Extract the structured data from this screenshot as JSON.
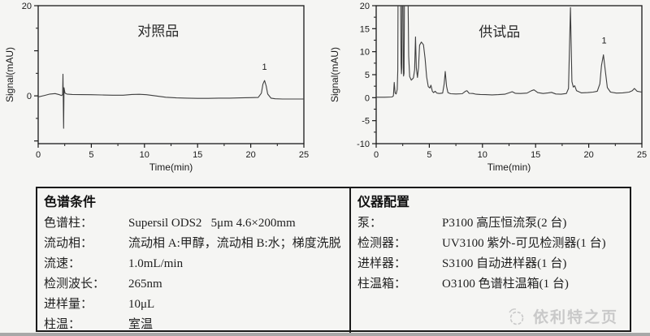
{
  "colors": {
    "background": "#f5f5f3",
    "axis": "#1a1a1a",
    "trace": "#3f3f3f",
    "text": "#1f1f1f",
    "table_border": "#1a1a1a",
    "watermark": "#c9c9c9",
    "bottom_strip": "#a8a8a8"
  },
  "chart_data": [
    {
      "type": "line",
      "sample_label": "对照品",
      "sample_label_pos": {
        "x": 11.3,
        "y": 13.3
      },
      "xlabel": "Time(min)",
      "ylabel": "Signal(mAU)",
      "xlim": [
        0,
        25
      ],
      "ylim": [
        -10.6,
        20
      ],
      "x_major_ticks": [
        0,
        5,
        10,
        15,
        20,
        25
      ],
      "x_minor_ticks": [
        2.5,
        7.5,
        12.5,
        17.5,
        22.5
      ],
      "y_major_ticks": [
        {
          "v": 20,
          "label": "20"
        },
        {
          "v": 10,
          "label": ""
        },
        {
          "v": 0,
          "label": "0"
        },
        {
          "v": -10,
          "label": ""
        }
      ],
      "y_minor_ticks": [
        15,
        5,
        -5
      ],
      "grid": false,
      "peak_labels": [
        {
          "text": "1",
          "x": 21.3,
          "y": 5.8
        }
      ],
      "series": [
        {
          "name": "对照品",
          "points": [
            [
              0,
              -0.25
            ],
            [
              0.6,
              0.1
            ],
            [
              1.1,
              0.4
            ],
            [
              1.6,
              0.5
            ],
            [
              2.0,
              0.25
            ],
            [
              2.2,
              0.05
            ],
            [
              2.3,
              0.3
            ],
            [
              2.33,
              4.8
            ],
            [
              2.36,
              -1.0
            ],
            [
              2.39,
              -7.2
            ],
            [
              2.43,
              1.8
            ],
            [
              2.52,
              0.6
            ],
            [
              2.7,
              0.4
            ],
            [
              3.2,
              0.3
            ],
            [
              4.0,
              0.28
            ],
            [
              5.0,
              0.25
            ],
            [
              6.0,
              0.2
            ],
            [
              7.0,
              0.15
            ],
            [
              8.0,
              0.15
            ],
            [
              8.8,
              0.3
            ],
            [
              9.5,
              0.35
            ],
            [
              10.2,
              0.25
            ],
            [
              11.0,
              0.0
            ],
            [
              12.0,
              -0.3
            ],
            [
              13.0,
              -0.45
            ],
            [
              14.0,
              -0.5
            ],
            [
              15.0,
              -0.55
            ],
            [
              16.0,
              -0.55
            ],
            [
              17.0,
              -0.5
            ],
            [
              18.0,
              -0.5
            ],
            [
              19.0,
              -0.45
            ],
            [
              20.0,
              -0.4
            ],
            [
              20.7,
              -0.35
            ],
            [
              21.0,
              0.6
            ],
            [
              21.15,
              2.6
            ],
            [
              21.3,
              3.4
            ],
            [
              21.45,
              2.2
            ],
            [
              21.6,
              0.4
            ],
            [
              21.9,
              -0.5
            ],
            [
              22.3,
              -0.65
            ],
            [
              23.0,
              -0.7
            ],
            [
              24.0,
              -0.7
            ],
            [
              25.0,
              -0.7
            ]
          ]
        }
      ]
    },
    {
      "type": "line",
      "sample_label": "供试品",
      "sample_label_pos": {
        "x": 11.6,
        "y": 13.3
      },
      "xlabel": "Time(min)",
      "ylabel": "Signal(mAU)",
      "xlim": [
        0,
        25
      ],
      "ylim": [
        -10,
        20
      ],
      "x_major_ticks": [
        0,
        5,
        10,
        15,
        20,
        25
      ],
      "x_minor_ticks": [
        2.5,
        7.5,
        12.5,
        17.5,
        22.5
      ],
      "y_major_ticks": [
        {
          "v": 20,
          "label": "20"
        },
        {
          "v": 15,
          "label": "15"
        },
        {
          "v": 10,
          "label": "10"
        },
        {
          "v": 5,
          "label": "5"
        },
        {
          "v": 0,
          "label": "0"
        },
        {
          "v": -5,
          "label": "-5"
        },
        {
          "v": -10,
          "label": "-10"
        }
      ],
      "y_minor_ticks": [
        17.5,
        12.5,
        7.5,
        2.5,
        -2.5,
        -7.5
      ],
      "grid": false,
      "peak_labels": [
        {
          "text": "1",
          "x": 21.45,
          "y": 11.8
        }
      ],
      "series": [
        {
          "name": "供试品",
          "points": [
            [
              0,
              0.1
            ],
            [
              0.8,
              0.1
            ],
            [
              1.5,
              0.15
            ],
            [
              1.62,
              0.4
            ],
            [
              1.7,
              3.3
            ],
            [
              1.78,
              1.0
            ],
            [
              1.88,
              0.8
            ],
            [
              1.98,
              1.8
            ],
            [
              2.03,
              6
            ],
            [
              2.06,
              22
            ],
            [
              2.3,
              22
            ],
            [
              2.34,
              7.5
            ],
            [
              2.38,
              5.2
            ],
            [
              2.41,
              6.5
            ],
            [
              2.44,
              22
            ],
            [
              2.52,
              22
            ],
            [
              2.55,
              6.5
            ],
            [
              2.58,
              4.7
            ],
            [
              2.62,
              5.3
            ],
            [
              2.66,
              22
            ],
            [
              3.0,
              22
            ],
            [
              3.06,
              9
            ],
            [
              3.15,
              4.6
            ],
            [
              3.3,
              3.8
            ],
            [
              3.5,
              4.3
            ],
            [
              3.62,
              6
            ],
            [
              3.7,
              13.2
            ],
            [
              3.78,
              6.5
            ],
            [
              3.88,
              4.4
            ],
            [
              3.98,
              6.5
            ],
            [
              4.08,
              11.4
            ],
            [
              4.25,
              12.1
            ],
            [
              4.45,
              11.5
            ],
            [
              4.6,
              8.5
            ],
            [
              4.75,
              4.5
            ],
            [
              4.9,
              2.4
            ],
            [
              5.05,
              2.1
            ],
            [
              5.15,
              2.7
            ],
            [
              5.28,
              1.4
            ],
            [
              5.4,
              1.1
            ],
            [
              5.55,
              1.4
            ],
            [
              5.7,
              1.0
            ],
            [
              5.95,
              0.9
            ],
            [
              6.25,
              1.0
            ],
            [
              6.4,
              3.0
            ],
            [
              6.5,
              5.7
            ],
            [
              6.62,
              2.5
            ],
            [
              6.75,
              1.1
            ],
            [
              7.0,
              0.85
            ],
            [
              7.5,
              0.8
            ],
            [
              8.1,
              0.85
            ],
            [
              8.4,
              1.4
            ],
            [
              8.55,
              1.5
            ],
            [
              8.75,
              0.95
            ],
            [
              9.1,
              0.9
            ],
            [
              9.4,
              0.75
            ],
            [
              9.8,
              0.7
            ],
            [
              10.3,
              0.65
            ],
            [
              10.9,
              0.6
            ],
            [
              11.5,
              0.65
            ],
            [
              12.1,
              0.75
            ],
            [
              12.55,
              1.1
            ],
            [
              12.8,
              1.3
            ],
            [
              13.1,
              0.95
            ],
            [
              13.6,
              0.9
            ],
            [
              14.2,
              1.0
            ],
            [
              14.6,
              1.5
            ],
            [
              14.85,
              1.7
            ],
            [
              15.2,
              1.1
            ],
            [
              15.7,
              0.9
            ],
            [
              16.2,
              1.05
            ],
            [
              16.5,
              1.15
            ],
            [
              16.9,
              0.8
            ],
            [
              17.4,
              0.75
            ],
            [
              17.9,
              0.9
            ],
            [
              18.1,
              2.0
            ],
            [
              18.28,
              19.6
            ],
            [
              18.42,
              3.5
            ],
            [
              18.55,
              2.3
            ],
            [
              18.68,
              2.6
            ],
            [
              18.85,
              1.5
            ],
            [
              19.3,
              1.05
            ],
            [
              19.9,
              1.1
            ],
            [
              20.4,
              1.2
            ],
            [
              20.8,
              1.4
            ],
            [
              21.05,
              3.0
            ],
            [
              21.2,
              7.0
            ],
            [
              21.38,
              9.3
            ],
            [
              21.55,
              6.0
            ],
            [
              21.75,
              2.2
            ],
            [
              22.05,
              1.2
            ],
            [
              22.6,
              1.0
            ],
            [
              23.2,
              1.05
            ],
            [
              23.8,
              1.2
            ],
            [
              24.1,
              1.5
            ],
            [
              24.3,
              2.0
            ],
            [
              24.55,
              1.4
            ],
            [
              25.0,
              1.2
            ]
          ]
        }
      ]
    }
  ],
  "table": {
    "chromatographic_conditions": {
      "header": "色谱条件",
      "rows": [
        {
          "label": "色谱柱：",
          "value": "Supersil ODS2   5μm 4.6×200mm"
        },
        {
          "label": "流动相：",
          "value": "流动相 A:甲醇，流动相 B:水；梯度洗脱"
        },
        {
          "label": "流速：",
          "value": "1.0mL/min"
        },
        {
          "label": "检测波长：",
          "value": "265nm"
        },
        {
          "label": "进样量：",
          "value": "10μL"
        },
        {
          "label": "柱温：",
          "value": "室温"
        }
      ]
    },
    "instrument_configuration": {
      "header": "仪器配置",
      "rows": [
        {
          "label": "泵：",
          "value": "P3100 高压恒流泵(2 台)"
        },
        {
          "label": "检测器：",
          "value": "UV3100 紫外-可见检测器(1 台)"
        },
        {
          "label": "进样器：",
          "value": "S3100 自动进样器(1 台)"
        },
        {
          "label": "柱温箱：",
          "value": "O3100 色谱柱温箱(1 台)"
        }
      ]
    }
  },
  "watermark": {
    "text": "依利特之页"
  }
}
